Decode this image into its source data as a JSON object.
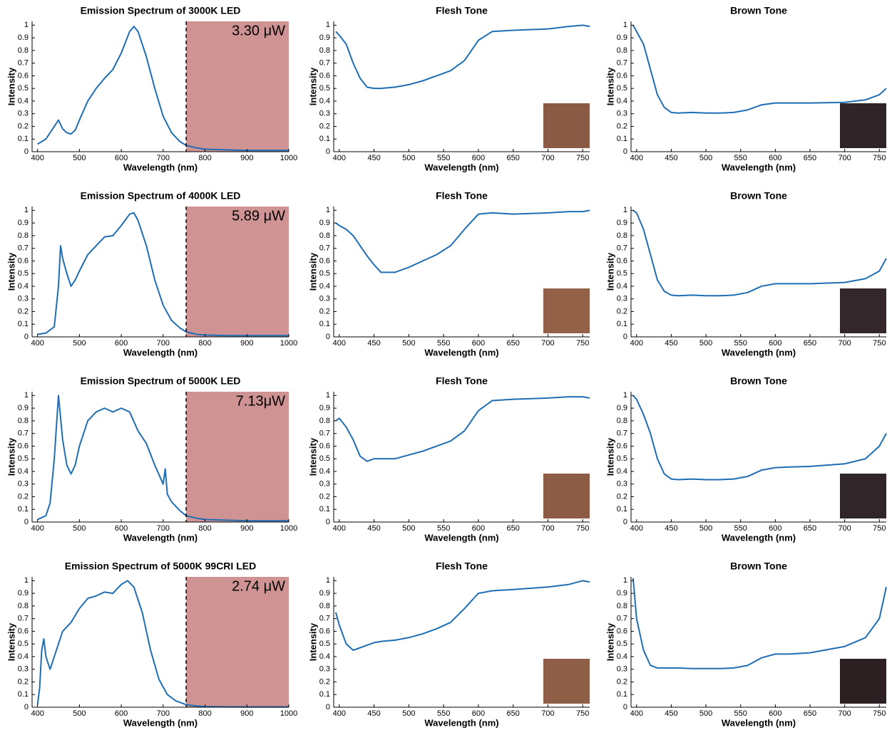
{
  "chart_data": [
    {
      "type": "line",
      "title": "Emission Spectrum of 3000K LED",
      "xlabel": "Wavelength (nm)",
      "ylabel": "Intensity",
      "annotation": "3.30 μW",
      "shaded_region": [
        755,
        1000
      ],
      "shade_color": "#d09393",
      "color": "#1f6eb4",
      "x": [
        400,
        420,
        440,
        450,
        460,
        470,
        480,
        490,
        500,
        520,
        540,
        560,
        580,
        600,
        620,
        630,
        640,
        660,
        680,
        700,
        720,
        740,
        755,
        780,
        800,
        850,
        900,
        950,
        1000
      ],
      "values": [
        0.06,
        0.1,
        0.2,
        0.25,
        0.18,
        0.15,
        0.14,
        0.17,
        0.25,
        0.4,
        0.5,
        0.58,
        0.65,
        0.78,
        0.95,
        0.99,
        0.95,
        0.75,
        0.5,
        0.28,
        0.15,
        0.08,
        0.05,
        0.03,
        0.02,
        0.015,
        0.01,
        0.01,
        0.01
      ],
      "xlim": [
        387,
        1000
      ],
      "ylim": [
        0,
        1.03
      ],
      "xticks": [
        400,
        500,
        600,
        700,
        800,
        900,
        1000
      ],
      "yticks": [
        0,
        0.1,
        0.2,
        0.3,
        0.4,
        0.5,
        0.6,
        0.7,
        0.8,
        0.9,
        1
      ]
    },
    {
      "type": "line",
      "title": "Flesh Tone",
      "xlabel": "Wavelength (nm)",
      "ylabel": "Intensity",
      "swatch_color": "#8b5a44",
      "color": "#1f6eb4",
      "x": [
        395,
        400,
        410,
        420,
        430,
        440,
        450,
        460,
        480,
        500,
        520,
        540,
        560,
        580,
        600,
        620,
        650,
        700,
        730,
        750,
        760
      ],
      "values": [
        0.95,
        0.92,
        0.85,
        0.7,
        0.58,
        0.51,
        0.5,
        0.5,
        0.51,
        0.53,
        0.56,
        0.6,
        0.64,
        0.72,
        0.88,
        0.95,
        0.96,
        0.97,
        0.99,
        1.0,
        0.99
      ],
      "xlim": [
        392,
        760
      ],
      "ylim": [
        0,
        1.03
      ],
      "xticks": [
        400,
        450,
        500,
        550,
        600,
        650,
        700,
        750
      ],
      "yticks": [
        0,
        0.1,
        0.2,
        0.3,
        0.4,
        0.5,
        0.6,
        0.7,
        0.8,
        0.9,
        1
      ]
    },
    {
      "type": "line",
      "title": "Brown Tone",
      "xlabel": "Wavelength (nm)",
      "ylabel": "Intensity",
      "swatch_color": "#2f2427",
      "color": "#1f6eb4",
      "x": [
        395,
        400,
        410,
        420,
        430,
        440,
        450,
        460,
        480,
        500,
        520,
        540,
        560,
        580,
        600,
        620,
        650,
        700,
        730,
        750,
        760
      ],
      "values": [
        1.0,
        0.95,
        0.85,
        0.65,
        0.45,
        0.35,
        0.31,
        0.305,
        0.31,
        0.305,
        0.305,
        0.31,
        0.33,
        0.37,
        0.385,
        0.385,
        0.385,
        0.39,
        0.41,
        0.45,
        0.5
      ],
      "xlim": [
        392,
        760
      ],
      "ylim": [
        0,
        1.03
      ],
      "xticks": [
        400,
        450,
        500,
        550,
        600,
        650,
        700,
        750
      ],
      "yticks": [
        0,
        0.1,
        0.2,
        0.3,
        0.4,
        0.5,
        0.6,
        0.7,
        0.8,
        0.9,
        1
      ]
    },
    {
      "type": "line",
      "title": "Emission Spectrum of 4000K LED",
      "xlabel": "Wavelength (nm)",
      "ylabel": "Intensity",
      "annotation": "5.89 μW",
      "shaded_region": [
        755,
        1000
      ],
      "shade_color": "#d09393",
      "color": "#1f6eb4",
      "x": [
        400,
        420,
        440,
        450,
        455,
        460,
        470,
        480,
        490,
        500,
        520,
        540,
        560,
        580,
        600,
        620,
        630,
        640,
        660,
        680,
        700,
        720,
        740,
        755,
        780,
        800,
        850,
        900,
        950,
        1000
      ],
      "values": [
        0.02,
        0.03,
        0.08,
        0.4,
        0.72,
        0.62,
        0.5,
        0.4,
        0.45,
        0.52,
        0.65,
        0.72,
        0.79,
        0.8,
        0.88,
        0.97,
        0.98,
        0.92,
        0.72,
        0.45,
        0.25,
        0.13,
        0.07,
        0.04,
        0.02,
        0.015,
        0.01,
        0.01,
        0.01,
        0.01
      ],
      "xlim": [
        387,
        1000
      ],
      "ylim": [
        0,
        1.03
      ],
      "xticks": [
        400,
        500,
        600,
        700,
        800,
        900,
        1000
      ],
      "yticks": [
        0,
        0.1,
        0.2,
        0.3,
        0.4,
        0.5,
        0.6,
        0.7,
        0.8,
        0.9,
        1
      ]
    },
    {
      "type": "line",
      "title": "Flesh Tone",
      "xlabel": "Wavelength (nm)",
      "ylabel": "Intensity",
      "swatch_color": "#926148",
      "color": "#1f6eb4",
      "x": [
        395,
        400,
        410,
        420,
        430,
        440,
        450,
        460,
        480,
        500,
        520,
        540,
        560,
        580,
        600,
        620,
        650,
        700,
        730,
        750,
        760
      ],
      "values": [
        0.9,
        0.88,
        0.85,
        0.8,
        0.72,
        0.64,
        0.57,
        0.51,
        0.51,
        0.55,
        0.6,
        0.65,
        0.72,
        0.85,
        0.97,
        0.98,
        0.97,
        0.98,
        0.99,
        0.99,
        1.0
      ],
      "xlim": [
        392,
        760
      ],
      "ylim": [
        0,
        1.03
      ],
      "xticks": [
        400,
        450,
        500,
        550,
        600,
        650,
        700,
        750
      ],
      "yticks": [
        0,
        0.1,
        0.2,
        0.3,
        0.4,
        0.5,
        0.6,
        0.7,
        0.8,
        0.9,
        1
      ]
    },
    {
      "type": "line",
      "title": "Brown Tone",
      "xlabel": "Wavelength (nm)",
      "ylabel": "Intensity",
      "swatch_color": "#33272b",
      "color": "#1f6eb4",
      "x": [
        395,
        400,
        410,
        420,
        430,
        440,
        450,
        460,
        480,
        500,
        520,
        540,
        560,
        580,
        600,
        620,
        650,
        700,
        730,
        750,
        760
      ],
      "values": [
        1.0,
        0.98,
        0.85,
        0.65,
        0.45,
        0.36,
        0.33,
        0.325,
        0.33,
        0.325,
        0.325,
        0.33,
        0.35,
        0.4,
        0.42,
        0.42,
        0.42,
        0.43,
        0.46,
        0.52,
        0.62
      ],
      "xlim": [
        392,
        760
      ],
      "ylim": [
        0,
        1.03
      ],
      "xticks": [
        400,
        450,
        500,
        550,
        600,
        650,
        700,
        750
      ],
      "yticks": [
        0,
        0.1,
        0.2,
        0.3,
        0.4,
        0.5,
        0.6,
        0.7,
        0.8,
        0.9,
        1
      ]
    },
    {
      "type": "line",
      "title": "Emission Spectrum of 5000K LED",
      "xlabel": "Wavelength (nm)",
      "ylabel": "Intensity",
      "annotation": "7.13μW",
      "shaded_region": [
        755,
        1000
      ],
      "shade_color": "#d09393",
      "color": "#1f6eb4",
      "x": [
        400,
        420,
        430,
        440,
        450,
        460,
        470,
        480,
        490,
        500,
        520,
        540,
        560,
        580,
        600,
        620,
        640,
        660,
        680,
        700,
        705,
        710,
        720,
        740,
        755,
        780,
        800,
        850,
        900,
        950,
        1000
      ],
      "values": [
        0.02,
        0.05,
        0.15,
        0.5,
        1.0,
        0.65,
        0.45,
        0.38,
        0.45,
        0.6,
        0.8,
        0.87,
        0.9,
        0.87,
        0.9,
        0.87,
        0.72,
        0.62,
        0.45,
        0.3,
        0.42,
        0.22,
        0.16,
        0.09,
        0.05,
        0.03,
        0.02,
        0.015,
        0.01,
        0.01,
        0.01
      ],
      "xlim": [
        387,
        1000
      ],
      "ylim": [
        0,
        1.03
      ],
      "xticks": [
        400,
        500,
        600,
        700,
        800,
        900,
        1000
      ],
      "yticks": [
        0,
        0.1,
        0.2,
        0.3,
        0.4,
        0.5,
        0.6,
        0.7,
        0.8,
        0.9,
        1
      ]
    },
    {
      "type": "line",
      "title": "Flesh Tone",
      "xlabel": "Wavelength (nm)",
      "ylabel": "Intensity",
      "swatch_color": "#8d5c44",
      "color": "#1f6eb4",
      "x": [
        395,
        400,
        410,
        420,
        430,
        440,
        450,
        460,
        480,
        500,
        520,
        540,
        560,
        580,
        600,
        620,
        650,
        700,
        730,
        750,
        760
      ],
      "values": [
        0.8,
        0.82,
        0.75,
        0.65,
        0.52,
        0.48,
        0.5,
        0.5,
        0.5,
        0.53,
        0.56,
        0.6,
        0.64,
        0.72,
        0.88,
        0.96,
        0.97,
        0.98,
        0.99,
        0.99,
        0.98
      ],
      "xlim": [
        392,
        760
      ],
      "ylim": [
        0,
        1.03
      ],
      "xticks": [
        400,
        450,
        500,
        550,
        600,
        650,
        700,
        750
      ],
      "yticks": [
        0,
        0.1,
        0.2,
        0.3,
        0.4,
        0.5,
        0.6,
        0.7,
        0.8,
        0.9,
        1
      ]
    },
    {
      "type": "line",
      "title": "Brown Tone",
      "xlabel": "Wavelength (nm)",
      "ylabel": "Intensity",
      "swatch_color": "#30262a",
      "color": "#1f6eb4",
      "x": [
        395,
        400,
        410,
        420,
        430,
        440,
        450,
        460,
        480,
        500,
        520,
        540,
        560,
        580,
        600,
        620,
        650,
        700,
        730,
        750,
        760
      ],
      "values": [
        1.0,
        0.97,
        0.85,
        0.7,
        0.5,
        0.38,
        0.34,
        0.335,
        0.34,
        0.335,
        0.335,
        0.34,
        0.36,
        0.41,
        0.43,
        0.435,
        0.44,
        0.46,
        0.5,
        0.6,
        0.7
      ],
      "xlim": [
        392,
        760
      ],
      "ylim": [
        0,
        1.03
      ],
      "xticks": [
        400,
        450,
        500,
        550,
        600,
        650,
        700,
        750
      ],
      "yticks": [
        0,
        0.1,
        0.2,
        0.3,
        0.4,
        0.5,
        0.6,
        0.7,
        0.8,
        0.9,
        1
      ]
    },
    {
      "type": "line",
      "title": "Emission Spectrum of 5000K 99CRI LED",
      "xlabel": "Wavelength (nm)",
      "ylabel": "Intensity",
      "annotation": "2.74 μW",
      "shaded_region": [
        755,
        1000
      ],
      "shade_color": "#d09393",
      "color": "#1f6eb4",
      "x": [
        400,
        405,
        410,
        415,
        420,
        430,
        440,
        460,
        480,
        500,
        520,
        540,
        560,
        580,
        600,
        615,
        630,
        650,
        670,
        690,
        710,
        730,
        755,
        780,
        800,
        850,
        900,
        950,
        1000
      ],
      "values": [
        0.02,
        0.15,
        0.45,
        0.54,
        0.4,
        0.3,
        0.4,
        0.6,
        0.67,
        0.78,
        0.86,
        0.88,
        0.91,
        0.9,
        0.97,
        1.0,
        0.95,
        0.75,
        0.45,
        0.22,
        0.1,
        0.05,
        0.02,
        0.01,
        0.005,
        0.003,
        0.002,
        0.002,
        0.002
      ],
      "xlim": [
        387,
        1000
      ],
      "ylim": [
        0,
        1.03
      ],
      "xticks": [
        400,
        500,
        600,
        700,
        800,
        900,
        1000
      ],
      "yticks": [
        0,
        0.1,
        0.2,
        0.3,
        0.4,
        0.5,
        0.6,
        0.7,
        0.8,
        0.9,
        1
      ]
    },
    {
      "type": "line",
      "title": "Flesh Tone",
      "xlabel": "Wavelength (nm)",
      "ylabel": "Intensity",
      "swatch_color": "#8e5e47",
      "color": "#1f6eb4",
      "x": [
        395,
        400,
        410,
        420,
        430,
        440,
        450,
        460,
        480,
        500,
        520,
        540,
        560,
        580,
        600,
        620,
        650,
        700,
        730,
        750,
        760
      ],
      "values": [
        0.75,
        0.65,
        0.5,
        0.45,
        0.47,
        0.49,
        0.51,
        0.52,
        0.53,
        0.55,
        0.58,
        0.62,
        0.67,
        0.78,
        0.9,
        0.92,
        0.93,
        0.95,
        0.97,
        1.0,
        0.99
      ],
      "xlim": [
        392,
        760
      ],
      "ylim": [
        0,
        1.03
      ],
      "xticks": [
        400,
        450,
        500,
        550,
        600,
        650,
        700,
        750
      ],
      "yticks": [
        0,
        0.1,
        0.2,
        0.3,
        0.4,
        0.5,
        0.6,
        0.7,
        0.8,
        0.9,
        1
      ]
    },
    {
      "type": "line",
      "title": "Brown Tone",
      "xlabel": "Wavelength (nm)",
      "ylabel": "Intensity",
      "swatch_color": "#2c2022",
      "color": "#1f6eb4",
      "x": [
        395,
        400,
        410,
        420,
        430,
        440,
        450,
        460,
        480,
        500,
        520,
        540,
        560,
        580,
        600,
        620,
        650,
        700,
        730,
        750,
        760
      ],
      "values": [
        1.02,
        0.7,
        0.45,
        0.33,
        0.31,
        0.31,
        0.31,
        0.31,
        0.305,
        0.305,
        0.305,
        0.31,
        0.33,
        0.39,
        0.42,
        0.42,
        0.43,
        0.48,
        0.55,
        0.7,
        0.95
      ],
      "xlim": [
        392,
        760
      ],
      "ylim": [
        0,
        1.03
      ],
      "xticks": [
        400,
        450,
        500,
        550,
        600,
        650,
        700,
        750
      ],
      "yticks": [
        0,
        0.1,
        0.2,
        0.3,
        0.4,
        0.5,
        0.6,
        0.7,
        0.8,
        0.9,
        1
      ]
    }
  ]
}
